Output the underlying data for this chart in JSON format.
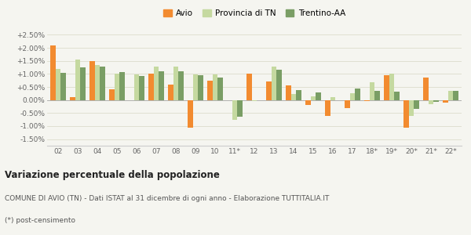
{
  "categories": [
    "02",
    "03",
    "04",
    "05",
    "06",
    "07",
    "08",
    "09",
    "10",
    "11*",
    "12",
    "13",
    "14",
    "15",
    "16",
    "17",
    "18*",
    "19*",
    "20*",
    "21*",
    "22*"
  ],
  "avio": [
    2.08,
    0.1,
    1.5,
    0.4,
    -0.02,
    1.02,
    0.6,
    -1.05,
    0.75,
    -0.02,
    1.0,
    0.7,
    0.55,
    -0.2,
    -0.6,
    -0.3,
    -0.05,
    0.95,
    -1.05,
    0.85,
    -0.1
  ],
  "provincia": [
    1.2,
    1.55,
    1.35,
    1.02,
    0.97,
    1.28,
    1.27,
    0.98,
    0.98,
    -0.75,
    -0.05,
    1.28,
    0.22,
    0.13,
    0.1,
    0.26,
    0.68,
    1.0,
    -0.6,
    -0.15,
    0.35
  ],
  "trentino": [
    1.05,
    1.26,
    1.28,
    1.08,
    0.92,
    1.1,
    1.11,
    0.95,
    0.87,
    -0.63,
    0.0,
    1.15,
    0.38,
    0.3,
    0.0,
    0.45,
    0.35,
    0.32,
    -0.35,
    -0.08,
    0.35
  ],
  "color_avio": "#f28b30",
  "color_provincia": "#c5d9a0",
  "color_trentino": "#7a9e65",
  "title": "Variazione percentuale della popolazione",
  "subtitle": "COMUNE DI AVIO (TN) - Dati ISTAT al 31 dicembre di ogni anno - Elaborazione TUTTITALIA.IT",
  "footnote": "(*) post-censimento",
  "ylim": [
    -1.75,
    2.75
  ],
  "yticks": [
    -1.5,
    -1.0,
    -0.5,
    0.0,
    0.5,
    1.0,
    1.5,
    2.0,
    2.5
  ],
  "background": "#f5f5f0",
  "grid_color": "#ddddcc"
}
